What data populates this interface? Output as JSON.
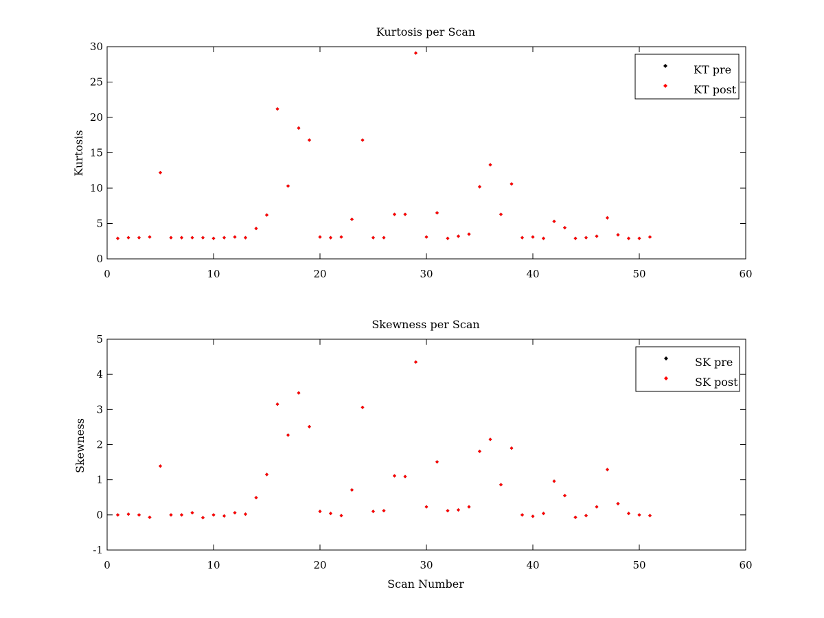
{
  "chart_data": [
    {
      "type": "scatter",
      "title": "Kurtosis per Scan",
      "xlabel": "",
      "ylabel": "Kurtosis",
      "xlim": [
        0,
        60
      ],
      "ylim": [
        0,
        30
      ],
      "xticks": [
        0,
        10,
        20,
        30,
        40,
        50,
        60
      ],
      "yticks": [
        0,
        5,
        10,
        15,
        20,
        25,
        30
      ],
      "grid": false,
      "legend": "top-right",
      "series": [
        {
          "name": "KT pre",
          "color": "#000000",
          "x": [
            1,
            2,
            3,
            4,
            5,
            6,
            7,
            8,
            9,
            10,
            11,
            12,
            13,
            14,
            15,
            16,
            17,
            18,
            19,
            20,
            21,
            22,
            23,
            24,
            25,
            26,
            27,
            28,
            29,
            30,
            31,
            32,
            33,
            34,
            35,
            36,
            37,
            38,
            39,
            40,
            41,
            42,
            43,
            44,
            45,
            46,
            47,
            48,
            49,
            50,
            51
          ],
          "y": [
            2.9,
            3.0,
            3.0,
            3.1,
            12.2,
            3.0,
            3.0,
            3.0,
            3.0,
            2.9,
            3.0,
            3.1,
            3.0,
            4.3,
            6.2,
            21.2,
            10.3,
            18.5,
            16.8,
            3.1,
            3.0,
            3.1,
            5.6,
            16.8,
            3.0,
            3.0,
            6.3,
            6.3,
            29.1,
            3.1,
            6.5,
            2.9,
            3.2,
            3.5,
            10.2,
            13.3,
            6.3,
            10.6,
            3.0,
            3.1,
            2.9,
            5.3,
            4.4,
            2.9,
            3.0,
            3.2,
            5.8,
            3.4,
            2.9,
            2.9,
            3.1
          ]
        },
        {
          "name": "KT post",
          "color": "#ff0000",
          "x": [
            1,
            2,
            3,
            4,
            5,
            6,
            7,
            8,
            9,
            10,
            11,
            12,
            13,
            14,
            15,
            16,
            17,
            18,
            19,
            20,
            21,
            22,
            23,
            24,
            25,
            26,
            27,
            28,
            29,
            30,
            31,
            32,
            33,
            34,
            35,
            36,
            37,
            38,
            39,
            40,
            41,
            42,
            43,
            44,
            45,
            46,
            47,
            48,
            49,
            50,
            51
          ],
          "y": [
            2.9,
            3.0,
            3.0,
            3.1,
            12.2,
            3.0,
            3.0,
            3.0,
            3.0,
            2.9,
            3.0,
            3.1,
            3.0,
            4.3,
            6.2,
            21.2,
            10.3,
            18.5,
            16.8,
            3.1,
            3.0,
            3.1,
            5.6,
            16.8,
            3.0,
            3.0,
            6.3,
            6.3,
            29.1,
            3.1,
            6.5,
            2.9,
            3.2,
            3.5,
            10.2,
            13.3,
            6.3,
            10.6,
            3.0,
            3.1,
            2.9,
            5.3,
            4.4,
            2.9,
            3.0,
            3.2,
            5.8,
            3.4,
            2.9,
            2.9,
            3.1
          ]
        }
      ]
    },
    {
      "type": "scatter",
      "title": "Skewness per Scan",
      "xlabel": "Scan Number",
      "ylabel": "Skewness",
      "xlim": [
        0,
        60
      ],
      "ylim": [
        -1,
        5
      ],
      "xticks": [
        0,
        10,
        20,
        30,
        40,
        50,
        60
      ],
      "yticks": [
        -1,
        0,
        1,
        2,
        3,
        4,
        5
      ],
      "grid": false,
      "legend": "top-right",
      "series": [
        {
          "name": "SK pre",
          "color": "#000000",
          "x": [
            1,
            2,
            3,
            4,
            5,
            6,
            7,
            8,
            9,
            10,
            11,
            12,
            13,
            14,
            15,
            16,
            17,
            18,
            19,
            20,
            21,
            22,
            23,
            24,
            25,
            26,
            27,
            28,
            29,
            30,
            31,
            32,
            33,
            34,
            35,
            36,
            37,
            38,
            39,
            40,
            41,
            42,
            43,
            44,
            45,
            46,
            47,
            48,
            49,
            50,
            51
          ],
          "y": [
            0.0,
            0.02,
            0.0,
            -0.07,
            1.39,
            0.0,
            0.0,
            0.06,
            -0.08,
            0.0,
            -0.03,
            0.06,
            0.02,
            0.49,
            1.15,
            3.15,
            2.27,
            3.47,
            2.51,
            0.1,
            0.04,
            -0.02,
            0.71,
            3.06,
            0.1,
            0.12,
            1.11,
            1.09,
            4.35,
            0.23,
            1.51,
            0.12,
            0.14,
            0.23,
            1.81,
            2.15,
            0.86,
            1.9,
            0.0,
            -0.04,
            0.04,
            0.96,
            0.55,
            -0.07,
            -0.02,
            0.23,
            1.29,
            0.32,
            0.04,
            0.0,
            -0.02
          ]
        },
        {
          "name": "SK post",
          "color": "#ff0000",
          "x": [
            1,
            2,
            3,
            4,
            5,
            6,
            7,
            8,
            9,
            10,
            11,
            12,
            13,
            14,
            15,
            16,
            17,
            18,
            19,
            20,
            21,
            22,
            23,
            24,
            25,
            26,
            27,
            28,
            29,
            30,
            31,
            32,
            33,
            34,
            35,
            36,
            37,
            38,
            39,
            40,
            41,
            42,
            43,
            44,
            45,
            46,
            47,
            48,
            49,
            50,
            51
          ],
          "y": [
            0.0,
            0.02,
            0.0,
            -0.07,
            1.39,
            0.0,
            0.0,
            0.06,
            -0.08,
            0.0,
            -0.03,
            0.06,
            0.02,
            0.49,
            1.15,
            3.15,
            2.27,
            3.47,
            2.51,
            0.1,
            0.04,
            -0.02,
            0.71,
            3.06,
            0.1,
            0.12,
            1.11,
            1.09,
            4.35,
            0.23,
            1.51,
            0.12,
            0.14,
            0.23,
            1.81,
            2.15,
            0.86,
            1.9,
            0.0,
            -0.04,
            0.04,
            0.96,
            0.55,
            -0.07,
            -0.02,
            0.23,
            1.29,
            0.32,
            0.04,
            0.0,
            -0.02
          ]
        }
      ]
    }
  ]
}
